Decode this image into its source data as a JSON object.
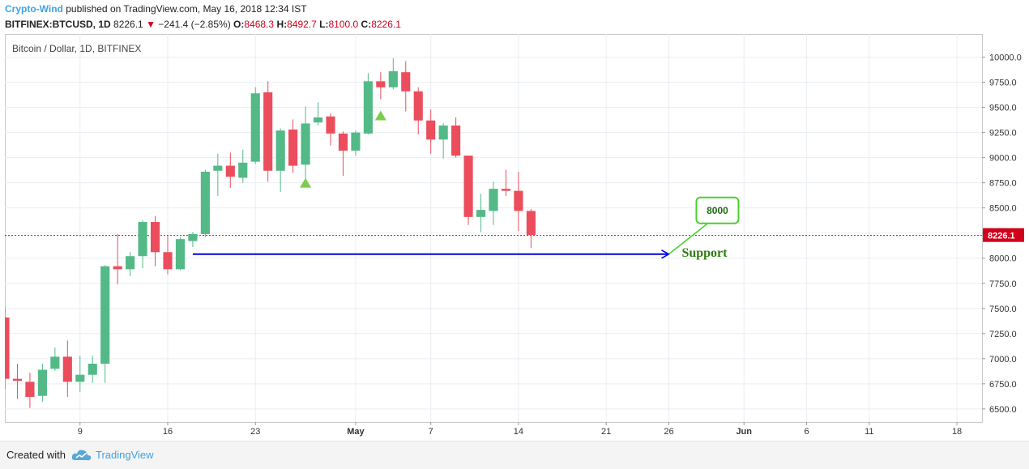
{
  "header": {
    "author": "Crypto-Wind",
    "published_text": "published on TradingView.com, May 16, 2018 12:34 IST",
    "symbol": "BITFINEX:BTCUSD, 1D",
    "last": "8226.1",
    "change_arrow": "▼",
    "change": "−241.4 (−2.85%)",
    "open_label": "O:",
    "open": "8468.3",
    "high_label": "H:",
    "high": "8492.7",
    "low_label": "L:",
    "low": "8100.0",
    "close_label": "C:",
    "close": "8226.1"
  },
  "chart_title": "Bitcoin / Dollar, 1D, BITFINEX",
  "chart_data": {
    "type": "candlestick",
    "up_color": "#53b987",
    "down_color": "#eb4d5c",
    "y_ticks": [
      "10000.0",
      "9750.0",
      "9500.0",
      "9250.0",
      "9000.0",
      "8750.0",
      "8500.0",
      "8250.0",
      "8000.0",
      "7750.0",
      "7500.0",
      "7250.0",
      "7000.0",
      "6750.0",
      "6500.0"
    ],
    "ylim": [
      6370,
      10230
    ],
    "x_ticks": [
      {
        "day": 9,
        "label": "9"
      },
      {
        "day": 16,
        "label": "16"
      },
      {
        "day": 23,
        "label": "23"
      },
      {
        "day": 31,
        "label": "May"
      },
      {
        "day": 37,
        "label": "7"
      },
      {
        "day": 44,
        "label": "14"
      },
      {
        "day": 51,
        "label": "21"
      },
      {
        "day": 56,
        "label": "26"
      },
      {
        "day": 62,
        "label": "Jun"
      },
      {
        "day": 67,
        "label": "6"
      },
      {
        "day": 72,
        "label": "11"
      },
      {
        "day": 79,
        "label": "18"
      }
    ],
    "x_range": [
      3,
      81
    ],
    "candles": [
      {
        "d": "Apr 3",
        "o": 7410,
        "h": 7520,
        "l": 6700,
        "c": 6800
      },
      {
        "d": "Apr 4",
        "o": 6800,
        "h": 6950,
        "l": 6600,
        "c": 6780
      },
      {
        "d": "Apr 5",
        "o": 6770,
        "h": 6860,
        "l": 6510,
        "c": 6620
      },
      {
        "d": "Apr 6",
        "o": 6630,
        "h": 6950,
        "l": 6570,
        "c": 6890
      },
      {
        "d": "Apr 7",
        "o": 6900,
        "h": 7110,
        "l": 6880,
        "c": 7020
      },
      {
        "d": "Apr 8",
        "o": 7020,
        "h": 7180,
        "l": 6620,
        "c": 6770
      },
      {
        "d": "Apr 9",
        "o": 6770,
        "h": 7030,
        "l": 6670,
        "c": 6840
      },
      {
        "d": "Apr 10",
        "o": 6840,
        "h": 7030,
        "l": 6760,
        "c": 6950
      },
      {
        "d": "Apr 11",
        "o": 6950,
        "h": 7930,
        "l": 6760,
        "c": 7920
      },
      {
        "d": "Apr 12",
        "o": 7920,
        "h": 8240,
        "l": 7740,
        "c": 7890
      },
      {
        "d": "Apr 13",
        "o": 7890,
        "h": 8060,
        "l": 7820,
        "c": 8020
      },
      {
        "d": "Apr 14",
        "o": 8020,
        "h": 8380,
        "l": 7900,
        "c": 8360
      },
      {
        "d": "Apr 15",
        "o": 8360,
        "h": 8420,
        "l": 7920,
        "c": 8060
      },
      {
        "d": "Apr 16",
        "o": 8060,
        "h": 8220,
        "l": 7840,
        "c": 7890
      },
      {
        "d": "Apr 17",
        "o": 7890,
        "h": 8210,
        "l": 7880,
        "c": 8190
      },
      {
        "d": "Apr 18",
        "o": 8170,
        "h": 8260,
        "l": 8110,
        "c": 8240
      },
      {
        "d": "Apr 19",
        "o": 8240,
        "h": 8880,
        "l": 8210,
        "c": 8860
      },
      {
        "d": "Apr 20",
        "o": 8870,
        "h": 9040,
        "l": 8620,
        "c": 8920
      },
      {
        "d": "Apr 21",
        "o": 8920,
        "h": 9050,
        "l": 8700,
        "c": 8810
      },
      {
        "d": "Apr 22",
        "o": 8800,
        "h": 9080,
        "l": 8750,
        "c": 8950
      },
      {
        "d": "Apr 23",
        "o": 8960,
        "h": 9700,
        "l": 8940,
        "c": 9640
      },
      {
        "d": "Apr 24",
        "o": 9650,
        "h": 9760,
        "l": 8760,
        "c": 8870
      },
      {
        "d": "Apr 25",
        "o": 8870,
        "h": 9290,
        "l": 8660,
        "c": 9270
      },
      {
        "d": "Apr 26",
        "o": 9280,
        "h": 9380,
        "l": 8850,
        "c": 8920
      },
      {
        "d": "Apr 27",
        "o": 8930,
        "h": 9510,
        "l": 8760,
        "c": 9340
      },
      {
        "d": "Apr 28",
        "o": 9350,
        "h": 9550,
        "l": 9320,
        "c": 9400
      },
      {
        "d": "Apr 29",
        "o": 9410,
        "h": 9440,
        "l": 9120,
        "c": 9240
      },
      {
        "d": "Apr 30",
        "o": 9240,
        "h": 9260,
        "l": 8820,
        "c": 9070
      },
      {
        "d": "May 1",
        "o": 9070,
        "h": 9270,
        "l": 9020,
        "c": 9250
      },
      {
        "d": "May 2",
        "o": 9240,
        "h": 9840,
        "l": 9230,
        "c": 9760
      },
      {
        "d": "May 3",
        "o": 9760,
        "h": 9850,
        "l": 9580,
        "c": 9700
      },
      {
        "d": "May 4",
        "o": 9700,
        "h": 9990,
        "l": 9680,
        "c": 9860
      },
      {
        "d": "May 5",
        "o": 9850,
        "h": 9960,
        "l": 9460,
        "c": 9660
      },
      {
        "d": "May 6",
        "o": 9660,
        "h": 9700,
        "l": 9230,
        "c": 9370
      },
      {
        "d": "May 7",
        "o": 9370,
        "h": 9480,
        "l": 9040,
        "c": 9180
      },
      {
        "d": "May 8",
        "o": 9180,
        "h": 9340,
        "l": 8990,
        "c": 9320
      },
      {
        "d": "May 9",
        "o": 9320,
        "h": 9400,
        "l": 9000,
        "c": 9020
      },
      {
        "d": "May 10",
        "o": 9020,
        "h": 9020,
        "l": 8330,
        "c": 8410
      },
      {
        "d": "May 11",
        "o": 8410,
        "h": 8640,
        "l": 8260,
        "c": 8480
      },
      {
        "d": "May 12",
        "o": 8470,
        "h": 8760,
        "l": 8330,
        "c": 8690
      },
      {
        "d": "May 13",
        "o": 8690,
        "h": 8880,
        "l": 8620,
        "c": 8670
      },
      {
        "d": "May 14",
        "o": 8670,
        "h": 8860,
        "l": 8270,
        "c": 8470
      },
      {
        "d": "May 15",
        "o": 8470,
        "h": 8490,
        "l": 8100,
        "c": 8230
      }
    ],
    "markers": [
      {
        "d": "Apr 27",
        "price": 8750
      },
      {
        "d": "May 3",
        "price": 9420
      }
    ],
    "last_price": 8226.1,
    "last_price_label": "8226.1",
    "support_price": 8040,
    "support_end_day": 56,
    "support_label": "Support",
    "support_label_color": "#2e7d0e",
    "callout_label": "8000",
    "callout_color": "#46d22a",
    "support_line_color": "#0000e6",
    "last_price_color": "#d0021b"
  },
  "footer": {
    "created_with": "Created with",
    "brand": "TradingView"
  }
}
